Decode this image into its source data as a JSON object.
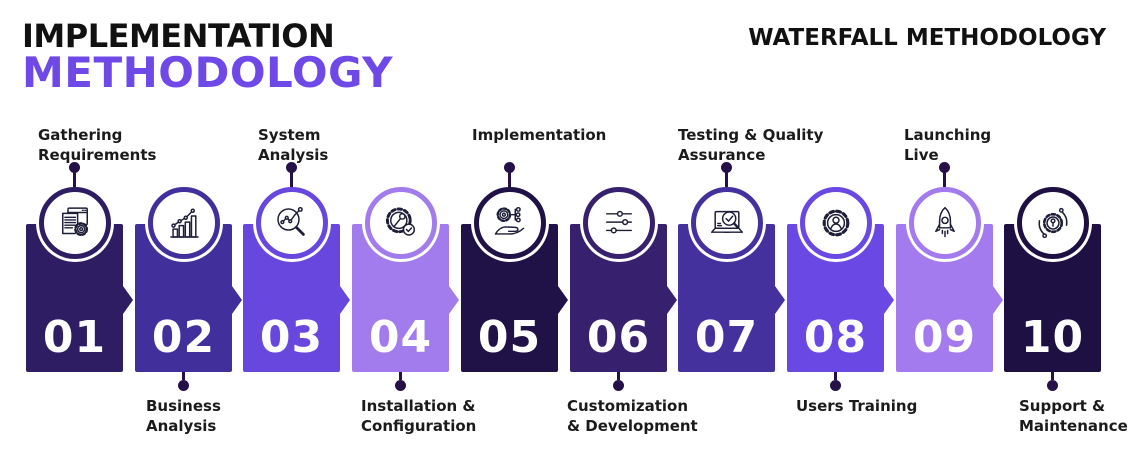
{
  "header": {
    "title_line1": "IMPLEMENTATION",
    "title_line2": "METHODOLOGY",
    "corner_title": "WATERFALL METHODOLOGY",
    "accent_color": "#6f49e8"
  },
  "connector_color": "#251147",
  "steps": [
    {
      "number": "01",
      "label": "Gathering\nRequirements",
      "label_position": "above",
      "color": "#2e1d62",
      "icon": "document-gear-icon"
    },
    {
      "number": "02",
      "label": "Business\nAnalysis",
      "label_position": "below",
      "color": "#41309c",
      "icon": "bar-chart-icon"
    },
    {
      "number": "03",
      "label": "System\nAnalysis",
      "label_position": "above",
      "color": "#6847df",
      "icon": "magnifier-nodes-icon"
    },
    {
      "number": "04",
      "label": "Installation &\nConfiguration",
      "label_position": "below",
      "color": "#a27cec",
      "icon": "gear-wrench-icon"
    },
    {
      "number": "05",
      "label": "Implementation",
      "label_position": "above",
      "color": "#201147",
      "icon": "hand-gear-icon"
    },
    {
      "number": "06",
      "label": "Customization\n& Development",
      "label_position": "below",
      "color": "#37216e",
      "icon": "sliders-icon"
    },
    {
      "number": "07",
      "label": "Testing & Quality\nAssurance",
      "label_position": "above",
      "color": "#44319e",
      "icon": "laptop-check-icon"
    },
    {
      "number": "08",
      "label": "Users Training",
      "label_position": "below",
      "color": "#6a48e4",
      "icon": "user-gear-icon"
    },
    {
      "number": "09",
      "label": "Launching\nLive",
      "label_position": "above",
      "color": "#a47bef",
      "icon": "rocket-icon"
    },
    {
      "number": "10",
      "label": "Support &\nMaintenance",
      "label_position": "below",
      "color": "#1e1042",
      "icon": "gear-sync-icon"
    }
  ]
}
